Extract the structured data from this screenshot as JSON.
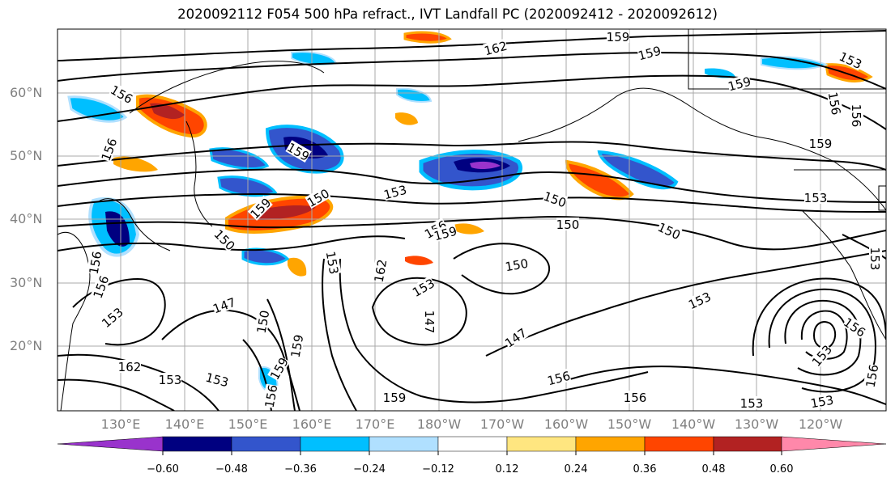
{
  "title": "2020092112 F054 500 hPa refract., IVT Landfall PC (2020092412 - 2020092612)",
  "lat_labels": [
    "60°N",
    "50°N",
    "40°N",
    "30°N",
    "20°N"
  ],
  "lon_labels": [
    "130°E",
    "140°E",
    "150°E",
    "160°E",
    "170°E",
    "180°W",
    "170°W",
    "160°W",
    "150°W",
    "140°W",
    "130°W",
    "120°W"
  ],
  "colorbar": {
    "tick_labels": [
      "−0.60",
      "−0.48",
      "−0.36",
      "−0.24",
      "−0.12",
      "0.12",
      "0.24",
      "0.36",
      "0.48",
      "0.60"
    ],
    "colors": [
      "#9933cc",
      "#000080",
      "#3355cc",
      "#00bfff",
      "#b0e0ff",
      "#ffffff",
      "#ffe680",
      "#ffa500",
      "#ff4500",
      "#b22222",
      "#ff88aa"
    ]
  },
  "contour_labels": [
    "162",
    "159",
    "159",
    "156",
    "159",
    "153",
    "156",
    "159",
    "156",
    "153",
    "156",
    "159",
    "153",
    "150",
    "150",
    "159",
    "150",
    "150",
    "156",
    "150",
    "162",
    "150",
    "153",
    "153",
    "153",
    "147",
    "147",
    "147",
    "153",
    "150",
    "156",
    "153",
    "159",
    "156",
    "156",
    "162",
    "159",
    "153",
    "153",
    "159",
    "156",
    "153",
    "153",
    "156",
    "156",
    "153",
    "156",
    "159"
  ]
}
